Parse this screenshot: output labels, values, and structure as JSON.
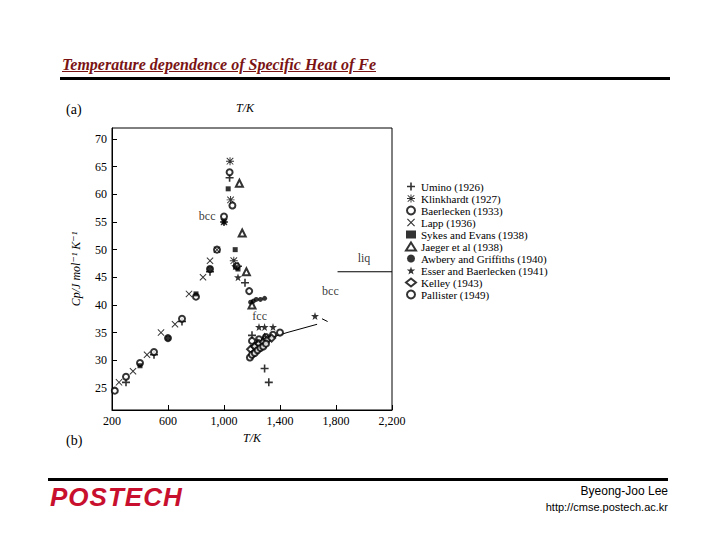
{
  "slide": {
    "title": "Temperature dependence of  Specific Heat of  Fe",
    "logo": "POSTECH",
    "author": "Byeong-Joo Lee",
    "url": "http://cmse.postech.ac.kr"
  },
  "chart_data": {
    "type": "scatter",
    "panel_labels": [
      "(a)",
      "(b)"
    ],
    "top_axis_label": "T/K",
    "x_label": "T/K",
    "y_label": "Cp/J mol⁻¹ K⁻¹",
    "xlim": [
      200,
      2200
    ],
    "xticks": [
      200,
      600,
      1000,
      1400,
      1800,
      2200
    ],
    "ylim": [
      21,
      72
    ],
    "yticks": [
      25,
      30,
      35,
      40,
      45,
      50,
      55,
      60,
      65,
      70
    ],
    "grid": false,
    "legend": "right",
    "series": [
      {
        "name": "Umino (1926)",
        "marker": "plus",
        "color": "#000000",
        "x": [
          300,
          500,
          700,
          900,
          1000,
          1040,
          1100,
          1150,
          1200,
          1290,
          1320
        ],
        "values": [
          26,
          31,
          37,
          46,
          55,
          63,
          47,
          44,
          34.5,
          28.5,
          26
        ]
      },
      {
        "name": "Klinkhardt (1927)",
        "marker": "asterisk",
        "color": "#000000",
        "x": [
          1043,
          1047,
          1070
        ],
        "values": [
          66,
          59,
          48
        ]
      },
      {
        "name": "Baerlecken (1933)",
        "marker": "circle",
        "color": "#000000",
        "x": [
          220,
          300,
          400,
          500,
          600,
          700,
          800,
          900,
          950,
          1000,
          1040,
          1060,
          1090,
          1180,
          1200,
          1250,
          1300,
          1350,
          1400
        ],
        "values": [
          24.5,
          27,
          29.5,
          31.5,
          34,
          37.5,
          41.5,
          46.5,
          50,
          56,
          64,
          58,
          47,
          42.5,
          33.5,
          33.8,
          34.2,
          34.6,
          35
        ]
      },
      {
        "name": "Lapp (1936)",
        "marker": "x",
        "color": "#000000",
        "x": [
          250,
          350,
          450,
          550,
          650,
          750,
          850,
          900,
          950,
          1000
        ],
        "values": [
          26,
          28,
          31,
          35,
          36.5,
          42,
          45,
          48,
          50,
          55
        ]
      },
      {
        "name": "Sykes and Evans (1938)",
        "marker": "square",
        "color": "#000000",
        "x": [
          400,
          600,
          800,
          900,
          1000,
          1030,
          1080,
          1100
        ],
        "values": [
          29,
          34,
          42,
          46.5,
          55,
          61,
          50,
          46.5
        ]
      },
      {
        "name": "Jaeger et al (1938)",
        "marker": "triangle",
        "color": "#000000",
        "x": [
          1110,
          1130,
          1160,
          1200,
          1240,
          1290
        ],
        "values": [
          62,
          53,
          46,
          40,
          33,
          34
        ]
      },
      {
        "name": "Awbery and Griffiths (1940)",
        "marker": "dot",
        "color": "#000000",
        "x": [
          1190,
          1210,
          1230,
          1260,
          1290
        ],
        "values": [
          40.5,
          40.7,
          41,
          41,
          41.2
        ]
      },
      {
        "name": "Esser and Baerlecken (1941)",
        "marker": "star",
        "color": "#000000",
        "x": [
          1080,
          1100,
          1250,
          1290,
          1350,
          1650
        ],
        "values": [
          47,
          45,
          36,
          36,
          36,
          38
        ]
      },
      {
        "name": "Kelley (1943)",
        "marker": "diamond",
        "color": "#000000",
        "x": [
          1190,
          1220,
          1250,
          1280,
          1310,
          1340
        ],
        "values": [
          32,
          32.5,
          33,
          33.3,
          33.7,
          34
        ]
      },
      {
        "name": "Pallister (1949)",
        "marker": "bold_circle",
        "color": "#000000",
        "x": [
          1185,
          1200,
          1220,
          1240,
          1260,
          1280,
          1300
        ],
        "values": [
          30.5,
          31,
          31.3,
          31.8,
          32.2,
          32.5,
          33
        ]
      }
    ],
    "lines": [
      {
        "x": [
          1185,
          1300,
          1450,
          1665
        ],
        "values": [
          32.5,
          33.8,
          35,
          36.5
        ],
        "color": "#000000"
      },
      {
        "x": [
          1700,
          1740
        ],
        "values": [
          37.5,
          37
        ],
        "color": "#000000"
      },
      {
        "x": [
          1811,
          2200
        ],
        "values": [
          46,
          46
        ],
        "color": "#000000"
      }
    ],
    "annotations": [
      {
        "text": "bcc",
        "x": 880,
        "y": 56
      },
      {
        "text": "fcc",
        "x": 1255,
        "y": 38
      },
      {
        "text": "bcc",
        "x": 1760,
        "y": 42.5
      },
      {
        "text": "liq",
        "x": 2000,
        "y": 48.5
      }
    ]
  }
}
